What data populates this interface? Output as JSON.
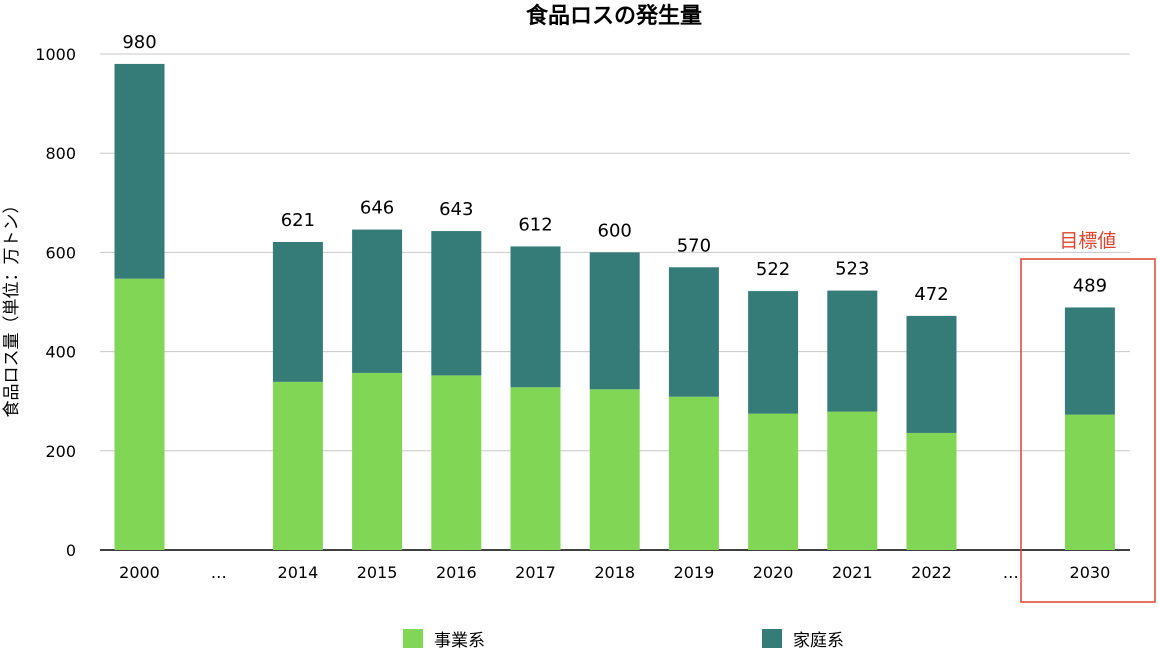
{
  "chart_data": {
    "type": "bar",
    "stacked": true,
    "title": "食品ロスの発生量",
    "ylabel": "食品ロス量（単位：万トン）",
    "xlabel": "",
    "ylim": [
      0,
      1000
    ],
    "yticks": [
      "0",
      "200",
      "400",
      "600",
      "800",
      "1000"
    ],
    "grid": true,
    "legend_position": "bottom",
    "categories": [
      "2000",
      "…",
      "2014",
      "2015",
      "2016",
      "2017",
      "2018",
      "2019",
      "2020",
      "2021",
      "2022",
      "…",
      "2030"
    ],
    "series": [
      {
        "name": "事業系",
        "color": "#82d655",
        "values": [
          547,
          null,
          339,
          357,
          352,
          328,
          324,
          309,
          275,
          279,
          236,
          null,
          273
        ]
      },
      {
        "name": "家庭系",
        "color": "#357b78",
        "values": [
          433,
          null,
          282,
          289,
          291,
          284,
          276,
          261,
          247,
          244,
          236,
          null,
          216
        ]
      }
    ],
    "totals": [
      "980",
      "",
      "621",
      "646",
      "643",
      "612",
      "600",
      "570",
      "522",
      "523",
      "472",
      "",
      "489"
    ],
    "annotation": {
      "text": "目標値",
      "category": "2030",
      "color": "#e0442f"
    }
  }
}
